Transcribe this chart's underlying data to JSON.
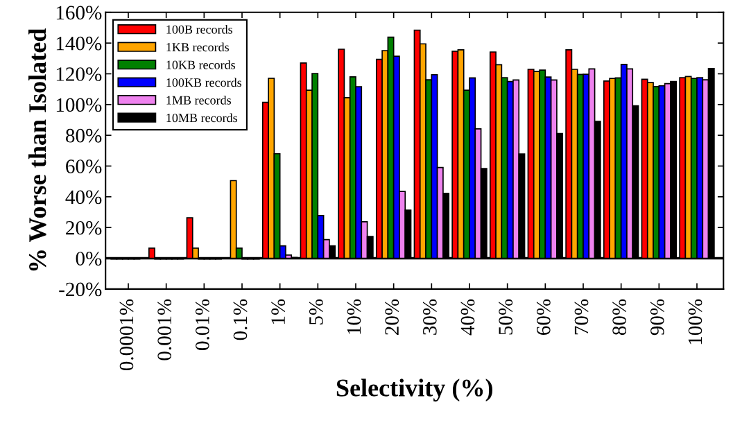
{
  "chart_data": {
    "type": "bar",
    "xlabel": "Selectivity (%)",
    "ylabel": "% Worse than Isolated",
    "categories": [
      "0.0001%",
      "0.001%",
      "0.01%",
      "0.1%",
      "1%",
      "5%",
      "10%",
      "20%",
      "30%",
      "40%",
      "50%",
      "60%",
      "70%",
      "80%",
      "90%",
      "100%"
    ],
    "series": [
      {
        "name": "100B records",
        "color": "#ff0000",
        "values": [
          -0.5,
          6.6,
          26.3,
          null,
          101.4,
          127,
          136,
          129.4,
          148.4,
          134.7,
          134.2,
          122.9,
          135.6,
          115.3,
          116.4,
          117.5
        ]
      },
      {
        "name": "1KB records",
        "color": "#ffa500",
        "values": [
          -0.5,
          -0.5,
          6.6,
          50.5,
          117.1,
          109.3,
          104.5,
          135.1,
          139.5,
          135.6,
          125.9,
          121.5,
          122.9,
          117,
          114.3,
          118.2
        ]
      },
      {
        "name": "10KB records",
        "color": "#008000",
        "values": [
          -0.5,
          -0.5,
          -0.5,
          6.6,
          68,
          120.2,
          118,
          143.8,
          116.1,
          109.3,
          117.5,
          122.4,
          119.6,
          117.3,
          111.7,
          117
        ]
      },
      {
        "name": "100KB records",
        "color": "#0000ff",
        "values": [
          -0.5,
          -0.5,
          -0.5,
          -0.5,
          8.1,
          27.8,
          111.6,
          131.4,
          119.4,
          117.3,
          115,
          117.9,
          119.7,
          126.1,
          112.2,
          117.5
        ]
      },
      {
        "name": "1MB records",
        "color": "#ee82ee",
        "values": [
          -0.5,
          -0.5,
          -0.5,
          -0.5,
          2.1,
          12.1,
          23.7,
          43.5,
          59,
          84.2,
          116,
          116,
          123.2,
          123.2,
          113.6,
          116.1
        ]
      },
      {
        "name": "10MB records",
        "color": "#000000",
        "values": [
          0.3,
          -0.5,
          -0.5,
          -0.5,
          0.5,
          8.1,
          14.2,
          31.3,
          42.3,
          58.4,
          67.9,
          81.2,
          89,
          99.2,
          115,
          123.4
        ]
      }
    ],
    "ylim": [
      -20,
      160
    ],
    "yticks": [
      {
        "value": -20,
        "label": "-20%"
      },
      {
        "value": 0,
        "label": "0%"
      },
      {
        "value": 20,
        "label": "20%"
      },
      {
        "value": 40,
        "label": "40%"
      },
      {
        "value": 60,
        "label": "60%"
      },
      {
        "value": 80,
        "label": "80%"
      },
      {
        "value": 100,
        "label": "100%"
      },
      {
        "value": 120,
        "label": "120%"
      },
      {
        "value": 140,
        "label": "140%"
      },
      {
        "value": 160,
        "label": "160%"
      }
    ],
    "ref_lines": [
      {
        "axis": "y",
        "value": 0,
        "label": null,
        "color": "#000000"
      }
    ],
    "legend": "top left",
    "grid": false
  }
}
